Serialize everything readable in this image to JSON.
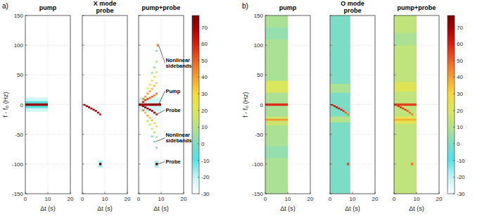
{
  "chart_data": [
    {
      "type": "heatmap",
      "panel_label": "a)",
      "title": "pump",
      "xlabel": "Δt (s)",
      "ylabel": "f - f₀ (Hz)",
      "xlim": [
        0,
        20
      ],
      "xticks": [
        0,
        10,
        20
      ],
      "ylim": [
        -150,
        150
      ],
      "yticks": [
        -150,
        -100,
        -50,
        0,
        50,
        100,
        150
      ],
      "grid": true,
      "cells": [
        {
          "t0": 0,
          "t1": 10,
          "f0": -12,
          "f1": 12,
          "value": -22
        },
        {
          "t0": 0,
          "t1": 10,
          "f0": -6,
          "f1": 6,
          "value": -8
        },
        {
          "t0": 0,
          "t1": 10,
          "f0": -2,
          "f1": 2,
          "value": 72
        }
      ]
    },
    {
      "type": "heatmap",
      "subtitle": "X mode",
      "title": "probe",
      "xlabel": "Δt (s)",
      "xlim": [
        0,
        20
      ],
      "xticks": [
        0,
        10,
        20
      ],
      "ylim": [
        -150,
        150
      ],
      "yticks": [
        -150,
        -100,
        -50,
        0,
        50,
        100,
        150
      ],
      "grid": true,
      "tick_labels": "x",
      "cells": [
        {
          "t0": 0.5,
          "t1": 1.5,
          "f0": -2,
          "f1": 1,
          "value": 66
        },
        {
          "t0": 1.5,
          "t1": 2.5,
          "f0": -4,
          "f1": -1,
          "value": 70
        },
        {
          "t0": 2.5,
          "t1": 3.5,
          "f0": -6,
          "f1": -3,
          "value": 72
        },
        {
          "t0": 3.5,
          "t1": 4.5,
          "f0": -8,
          "f1": -5,
          "value": 70
        },
        {
          "t0": 4.5,
          "t1": 5.5,
          "f0": -10,
          "f1": -7,
          "value": 72
        },
        {
          "t0": 5.5,
          "t1": 6.5,
          "f0": -12,
          "f1": -9,
          "value": 70
        },
        {
          "t0": 6.5,
          "t1": 7.5,
          "f0": -15,
          "f1": -12,
          "value": 68
        },
        {
          "t0": 7.5,
          "t1": 8.5,
          "f0": -18,
          "f1": -15,
          "value": 60
        },
        {
          "t0": 7,
          "t1": 9,
          "f0": -106,
          "f1": -94,
          "value": -18
        },
        {
          "t0": 7.5,
          "t1": 8.5,
          "f0": -102,
          "f1": -98,
          "value": 76
        }
      ]
    },
    {
      "type": "heatmap",
      "title": "pump+probe",
      "xlabel": "Δt (s)",
      "xlim": [
        0,
        20
      ],
      "xticks": [
        0,
        10,
        20
      ],
      "ylim": [
        -150,
        150
      ],
      "yticks": [
        -150,
        -100,
        -50,
        0,
        50,
        100,
        150
      ],
      "grid": true,
      "tick_labels": "x",
      "zlim": [
        -30,
        77
      ],
      "zticks": [
        -30,
        -20,
        -10,
        0,
        10,
        20,
        30,
        40,
        50,
        60,
        70
      ],
      "cells": [
        {
          "t0": 0,
          "t1": 10,
          "f0": -12,
          "f1": 12,
          "value": -22
        },
        {
          "t0": 0,
          "t1": 10,
          "f0": -2,
          "f1": 2,
          "value": 72
        },
        {
          "t0": 0.5,
          "t1": 1.5,
          "f0": -2,
          "f1": 1,
          "value": 66
        },
        {
          "t0": 1.5,
          "t1": 2.5,
          "f0": -4,
          "f1": -1,
          "value": 70
        },
        {
          "t0": 2.5,
          "t1": 3.5,
          "f0": -6,
          "f1": -3,
          "value": 72
        },
        {
          "t0": 3.5,
          "t1": 4.5,
          "f0": -8,
          "f1": -5,
          "value": 70
        },
        {
          "t0": 4.5,
          "t1": 5.5,
          "f0": -10,
          "f1": -7,
          "value": 72
        },
        {
          "t0": 5.5,
          "t1": 6.5,
          "f0": -12,
          "f1": -9,
          "value": 70
        },
        {
          "t0": 6.5,
          "t1": 7.5,
          "f0": -15,
          "f1": -12,
          "value": 68
        },
        {
          "t0": 7.5,
          "t1": 8.5,
          "f0": -18,
          "f1": -15,
          "value": 60
        },
        {
          "t0": 1.5,
          "t1": 2.5,
          "f0": 3,
          "f1": 6,
          "value": 60
        },
        {
          "t0": 1.5,
          "t1": 2.5,
          "f0": 8,
          "f1": 11,
          "value": 45
        },
        {
          "t0": 1.5,
          "t1": 2.5,
          "f0": -11,
          "f1": -8,
          "value": 45
        },
        {
          "t0": 2.5,
          "t1": 3.5,
          "f0": 6,
          "f1": 9,
          "value": 55
        },
        {
          "t0": 2.5,
          "t1": 3.5,
          "f0": 12,
          "f1": 15,
          "value": 40
        },
        {
          "t0": 2.5,
          "t1": 3.5,
          "f0": -15,
          "f1": -12,
          "value": 35
        },
        {
          "t0": 3.5,
          "t1": 4.5,
          "f0": 8,
          "f1": 11,
          "value": 55
        },
        {
          "t0": 3.5,
          "t1": 4.5,
          "f0": 17,
          "f1": 20,
          "value": 40
        },
        {
          "t0": 3.5,
          "t1": 4.5,
          "f0": 26,
          "f1": 29,
          "value": 20
        },
        {
          "t0": 3.5,
          "t1": 4.5,
          "f0": -20,
          "f1": -17,
          "value": 40
        },
        {
          "t0": 3.5,
          "t1": 4.5,
          "f0": -29,
          "f1": -26,
          "value": 15
        },
        {
          "t0": 4.5,
          "t1": 5.5,
          "f0": 10,
          "f1": 13,
          "value": 50
        },
        {
          "t0": 4.5,
          "t1": 5.5,
          "f0": 21,
          "f1": 24,
          "value": 40
        },
        {
          "t0": 4.5,
          "t1": 5.5,
          "f0": 32,
          "f1": 35,
          "value": 20
        },
        {
          "t0": 4.5,
          "t1": 5.5,
          "f0": -24,
          "f1": -21,
          "value": 35
        },
        {
          "t0": 4.5,
          "t1": 5.5,
          "f0": -35,
          "f1": -32,
          "value": 15
        },
        {
          "t0": 5.5,
          "t1": 6.5,
          "f0": 12,
          "f1": 15,
          "value": 50
        },
        {
          "t0": 5.5,
          "t1": 6.5,
          "f0": 25,
          "f1": 28,
          "value": 35
        },
        {
          "t0": 5.5,
          "t1": 6.5,
          "f0": 39,
          "f1": 42,
          "value": 20
        },
        {
          "t0": 5.5,
          "t1": 6.5,
          "f0": 52,
          "f1": 55,
          "value": 5
        },
        {
          "t0": 5.5,
          "t1": 6.5,
          "f0": -28,
          "f1": -25,
          "value": 35
        },
        {
          "t0": 5.5,
          "t1": 6.5,
          "f0": -42,
          "f1": -39,
          "value": 15
        },
        {
          "t0": 5.5,
          "t1": 6.5,
          "f0": -55,
          "f1": -52,
          "value": 0
        },
        {
          "t0": 6.5,
          "t1": 7.5,
          "f0": 14,
          "f1": 17,
          "value": 45
        },
        {
          "t0": 6.5,
          "t1": 7.5,
          "f0": 30,
          "f1": 33,
          "value": 35
        },
        {
          "t0": 6.5,
          "t1": 7.5,
          "f0": 45,
          "f1": 48,
          "value": 20
        },
        {
          "t0": 6.5,
          "t1": 7.5,
          "f0": 61,
          "f1": 64,
          "value": 5
        },
        {
          "t0": 6.5,
          "t1": 7.5,
          "f0": -33,
          "f1": -30,
          "value": 30
        },
        {
          "t0": 6.5,
          "t1": 7.5,
          "f0": -48,
          "f1": -45,
          "value": 10
        },
        {
          "t0": 6.5,
          "t1": 7.5,
          "f0": -64,
          "f1": -61,
          "value": 0
        },
        {
          "t0": 7.5,
          "t1": 8.5,
          "f0": 17,
          "f1": 20,
          "value": 45
        },
        {
          "t0": 7.5,
          "t1": 8.5,
          "f0": 35,
          "f1": 38,
          "value": 30
        },
        {
          "t0": 7.5,
          "t1": 8.5,
          "f0": 53,
          "f1": 56,
          "value": 20
        },
        {
          "t0": 7.5,
          "t1": 8.5,
          "f0": 71,
          "f1": 74,
          "value": 10
        },
        {
          "t0": 7.5,
          "t1": 8.5,
          "f0": 89,
          "f1": 92,
          "value": 0
        },
        {
          "t0": 7.5,
          "t1": 8.5,
          "f0": -38,
          "f1": -35,
          "value": 25
        },
        {
          "t0": 7.5,
          "t1": 8.5,
          "f0": -56,
          "f1": -53,
          "value": 10
        },
        {
          "t0": 7.5,
          "t1": 8.5,
          "f0": -74,
          "f1": -71,
          "value": 0
        },
        {
          "t0": 8,
          "t1": 9,
          "f0": 98,
          "f1": 102,
          "value": 45
        },
        {
          "t0": 7,
          "t1": 9,
          "f0": -106,
          "f1": -94,
          "value": -18
        },
        {
          "t0": 7.5,
          "t1": 8.5,
          "f0": -102,
          "f1": -98,
          "value": 76
        }
      ],
      "annotations": [
        {
          "text": "Nonlinear sidebands",
          "x": 9,
          "y": 99,
          "label_y": 70
        },
        {
          "text": "Pump",
          "x": 9,
          "y": 1,
          "label_y": 23
        },
        {
          "text": "Probe",
          "x": 8.3,
          "y": -16,
          "label_y": -9
        },
        {
          "text": "Nonlinear sidebands",
          "x": 7.8,
          "y": -62,
          "label_y": -56
        },
        {
          "text": "Probe",
          "x": 8.5,
          "y": -100,
          "label_y": -96
        }
      ]
    },
    {
      "type": "heatmap",
      "panel_label": "b)",
      "title": "pump",
      "xlabel": "Δt (s)",
      "ylabel": "f - f₀ (Hz)",
      "xlim": [
        0,
        20
      ],
      "xticks": [
        0,
        10,
        20
      ],
      "ylim": [
        -150,
        150
      ],
      "yticks": [
        -150,
        -100,
        -50,
        0,
        50,
        100,
        150
      ],
      "grid": true,
      "cells": [
        {
          "t0": 0,
          "t1": 10,
          "f0": -150,
          "f1": 150,
          "value": 8
        },
        {
          "t0": 0,
          "t1": 10,
          "f0": 20,
          "f1": 40,
          "value": 20
        },
        {
          "t0": 0,
          "t1": 10,
          "f0": -35,
          "f1": -20,
          "value": 16
        },
        {
          "t0": 0,
          "t1": 10,
          "f0": -90,
          "f1": -70,
          "value": 4
        },
        {
          "t0": 0,
          "t1": 10,
          "f0": 110,
          "f1": 130,
          "value": 4
        },
        {
          "t0": 0,
          "t1": 10,
          "f0": -2,
          "f1": 2,
          "value": 58
        },
        {
          "t0": 0,
          "t1": 10,
          "f0": -27,
          "f1": -24,
          "value": 42
        }
      ]
    },
    {
      "type": "heatmap",
      "subtitle": "O mode",
      "title": "probe",
      "xlabel": "Δt (s)",
      "xlim": [
        0,
        20
      ],
      "xticks": [
        0,
        10,
        20
      ],
      "ylim": [
        -150,
        150
      ],
      "yticks": [
        -150,
        -100,
        -50,
        0,
        50,
        100,
        150
      ],
      "grid": true,
      "tick_labels": "x",
      "cells": [
        {
          "t0": 0,
          "t1": 9,
          "f0": -150,
          "f1": 150,
          "value": 0
        },
        {
          "t0": 0,
          "t1": 9,
          "f0": -30,
          "f1": -20,
          "value": 10
        },
        {
          "t0": 0,
          "t1": 9,
          "f0": 20,
          "f1": 35,
          "value": 8
        },
        {
          "t0": 0.5,
          "t1": 1.5,
          "f0": -2,
          "f1": 1,
          "value": 60
        },
        {
          "t0": 1.5,
          "t1": 2.5,
          "f0": -4,
          "f1": -1,
          "value": 62
        },
        {
          "t0": 2.5,
          "t1": 3.5,
          "f0": -6,
          "f1": -3,
          "value": 64
        },
        {
          "t0": 3.5,
          "t1": 4.5,
          "f0": -8,
          "f1": -5,
          "value": 62
        },
        {
          "t0": 4.5,
          "t1": 5.5,
          "f0": -10,
          "f1": -7,
          "value": 60
        },
        {
          "t0": 5.5,
          "t1": 6.5,
          "f0": -12,
          "f1": -9,
          "value": 58
        },
        {
          "t0": 6.5,
          "t1": 7.5,
          "f0": -15,
          "f1": -12,
          "value": 50
        },
        {
          "t0": 7.5,
          "t1": 8.5,
          "f0": -18,
          "f1": -15,
          "value": 45
        },
        {
          "t0": 7.5,
          "t1": 8.5,
          "f0": -102,
          "f1": -98,
          "value": 55
        }
      ]
    },
    {
      "type": "heatmap",
      "title": "pump+probe",
      "xlabel": "Δt (s)",
      "xlim": [
        0,
        20
      ],
      "xticks": [
        0,
        10,
        20
      ],
      "ylim": [
        -150,
        150
      ],
      "yticks": [
        -150,
        -100,
        -50,
        0,
        50,
        100,
        150
      ],
      "grid": true,
      "tick_labels": "x",
      "zlim": [
        -30,
        77
      ],
      "zticks": [
        -30,
        -20,
        -10,
        0,
        10,
        20,
        30,
        40,
        50,
        60,
        70
      ],
      "cells": [
        {
          "t0": 0,
          "t1": 10,
          "f0": -150,
          "f1": 150,
          "value": 13
        },
        {
          "t0": 0,
          "t1": 10,
          "f0": 22,
          "f1": 38,
          "value": 22
        },
        {
          "t0": 0,
          "t1": 10,
          "f0": -32,
          "f1": -20,
          "value": 24
        },
        {
          "t0": 0,
          "t1": 10,
          "f0": 100,
          "f1": 120,
          "value": 8
        },
        {
          "t0": 0,
          "t1": 10,
          "f0": -2,
          "f1": 2,
          "value": 55
        },
        {
          "t0": 0,
          "t1": 10,
          "f0": -27,
          "f1": -24,
          "value": 38
        },
        {
          "t0": 0.5,
          "t1": 1.5,
          "f0": -2,
          "f1": 1,
          "value": 55
        },
        {
          "t0": 1.5,
          "t1": 2.5,
          "f0": -4,
          "f1": -1,
          "value": 58
        },
        {
          "t0": 2.5,
          "t1": 3.5,
          "f0": -6,
          "f1": -3,
          "value": 58
        },
        {
          "t0": 3.5,
          "t1": 4.5,
          "f0": -8,
          "f1": -5,
          "value": 56
        },
        {
          "t0": 4.5,
          "t1": 5.5,
          "f0": -10,
          "f1": -7,
          "value": 55
        },
        {
          "t0": 5.5,
          "t1": 6.5,
          "f0": -12,
          "f1": -9,
          "value": 52
        },
        {
          "t0": 6.5,
          "t1": 7.5,
          "f0": -15,
          "f1": -12,
          "value": 48
        },
        {
          "t0": 7.5,
          "t1": 8.5,
          "f0": -18,
          "f1": -15,
          "value": 45
        },
        {
          "t0": 7.5,
          "t1": 8.5,
          "f0": -102,
          "f1": -98,
          "value": 48
        }
      ]
    }
  ]
}
